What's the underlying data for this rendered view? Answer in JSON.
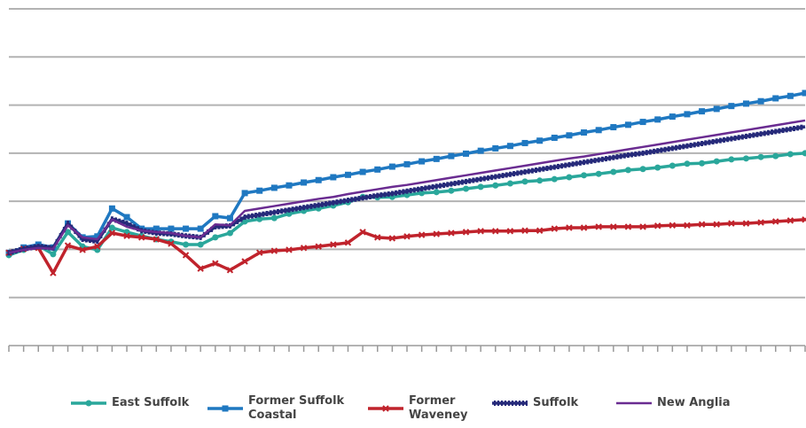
{
  "chart_data": {
    "type": "line",
    "x": [
      0,
      1,
      2,
      3,
      4,
      5,
      6,
      7,
      8,
      9,
      10,
      11,
      12,
      13,
      14,
      15,
      16,
      17,
      18,
      19,
      20,
      21,
      22,
      23,
      24,
      25,
      26,
      27,
      28,
      29,
      30,
      31,
      32,
      33,
      34,
      35,
      36,
      37,
      38,
      39,
      40,
      41,
      42,
      43,
      44,
      45,
      46,
      47,
      48,
      49,
      50,
      51,
      52,
      53,
      54
    ],
    "xlim": [
      0,
      54
    ],
    "xticks": [
      0,
      1,
      2,
      3,
      4,
      5,
      6,
      7,
      8,
      9,
      10,
      11,
      12,
      13,
      14,
      15,
      16,
      17,
      18,
      19,
      20,
      21,
      22,
      23,
      24,
      25,
      26,
      27,
      28,
      29,
      30,
      31,
      32,
      33,
      34,
      35,
      36,
      37,
      38,
      39,
      40,
      41,
      42,
      43,
      44,
      45,
      46,
      47,
      48,
      49,
      50,
      51,
      52,
      53,
      54
    ],
    "ylim": [
      0,
      70
    ],
    "yticks": [
      0,
      10,
      20,
      30,
      40,
      50,
      60,
      70
    ],
    "grid": true,
    "legend": "bottom",
    "series": [
      {
        "name": "East Suffolk",
        "color": "#2aa79b",
        "marker": "circle",
        "values": [
          18.8,
          19.9,
          20.8,
          19.0,
          23.6,
          20.6,
          19.9,
          24.5,
          23.6,
          22.8,
          22.1,
          21.6,
          21.0,
          21.0,
          22.5,
          23.4,
          25.8,
          26.3,
          26.5,
          27.4,
          28.0,
          28.5,
          29.1,
          29.8,
          30.9,
          30.8,
          30.9,
          31.3,
          31.7,
          31.9,
          32.2,
          32.6,
          33.0,
          33.3,
          33.7,
          34.1,
          34.3,
          34.6,
          35.0,
          35.4,
          35.7,
          36.1,
          36.5,
          36.7,
          37.0,
          37.4,
          37.8,
          37.9,
          38.3,
          38.7,
          38.9,
          39.2,
          39.4,
          39.8,
          40.0
        ]
      },
      {
        "name": "Former Suffolk Coastal",
        "color": "#1f78c1",
        "marker": "square",
        "values": [
          19.3,
          20.4,
          21.0,
          20.4,
          25.4,
          22.5,
          22.7,
          28.5,
          26.7,
          24.3,
          24.3,
          24.3,
          24.3,
          24.3,
          26.9,
          26.5,
          31.7,
          32.2,
          32.8,
          33.3,
          33.9,
          34.4,
          35.0,
          35.5,
          36.1,
          36.6,
          37.2,
          37.7,
          38.3,
          38.8,
          39.4,
          39.9,
          40.5,
          41.0,
          41.5,
          42.1,
          42.6,
          43.2,
          43.7,
          44.3,
          44.8,
          45.4,
          45.9,
          46.5,
          47.0,
          47.6,
          48.1,
          48.7,
          49.2,
          49.8,
          50.3,
          50.8,
          51.4,
          51.9,
          52.5
        ]
      },
      {
        "name": "Former Waveney",
        "color": "#c0232c",
        "marker": "cross",
        "values": [
          19.3,
          20.1,
          20.3,
          15.1,
          20.8,
          19.9,
          20.6,
          23.4,
          22.8,
          22.5,
          22.1,
          21.2,
          18.8,
          16.0,
          17.1,
          15.7,
          17.5,
          19.3,
          19.7,
          19.9,
          20.3,
          20.6,
          21.0,
          21.4,
          23.6,
          22.5,
          22.3,
          22.7,
          23.0,
          23.2,
          23.4,
          23.6,
          23.8,
          23.8,
          23.8,
          23.9,
          23.9,
          24.3,
          24.5,
          24.5,
          24.7,
          24.7,
          24.7,
          24.7,
          24.9,
          25.0,
          25.0,
          25.2,
          25.2,
          25.4,
          25.4,
          25.6,
          25.8,
          26.0,
          26.2
        ]
      },
      {
        "name": "Suffolk",
        "color": "#262a7a",
        "marker": "dash",
        "values": [
          19.3,
          20.1,
          20.6,
          20.3,
          25.4,
          22.1,
          21.7,
          26.3,
          25.4,
          23.9,
          23.4,
          23.2,
          22.8,
          22.5,
          24.7,
          24.9,
          26.7,
          27.2,
          27.7,
          28.2,
          28.7,
          29.2,
          29.7,
          30.2,
          30.7,
          31.2,
          31.6,
          32.1,
          32.6,
          33.1,
          33.6,
          34.1,
          34.6,
          35.1,
          35.6,
          36.1,
          36.6,
          37.1,
          37.6,
          38.1,
          38.6,
          39.1,
          39.6,
          40.0,
          40.5,
          41.0,
          41.5,
          42.0,
          42.5,
          43.0,
          43.5,
          44.0,
          44.5,
          45.0,
          45.5
        ]
      },
      {
        "name": "New Anglia",
        "color": "#6a2c91",
        "marker": "none",
        "values": [
          19.3,
          19.9,
          20.3,
          20.1,
          25.0,
          22.5,
          22.1,
          26.2,
          24.7,
          23.9,
          23.6,
          23.4,
          22.8,
          22.5,
          25.2,
          25.0,
          28.0,
          28.5,
          29.0,
          29.5,
          30.0,
          30.5,
          30.9,
          31.5,
          32.0,
          32.5,
          33.0,
          33.4,
          33.9,
          34.4,
          34.9,
          35.4,
          35.9,
          36.4,
          36.9,
          37.4,
          37.9,
          38.4,
          38.9,
          39.3,
          39.8,
          40.3,
          40.8,
          41.3,
          41.8,
          42.3,
          42.8,
          43.3,
          43.8,
          44.3,
          44.8,
          45.3,
          45.8,
          46.3,
          46.8
        ]
      }
    ]
  }
}
